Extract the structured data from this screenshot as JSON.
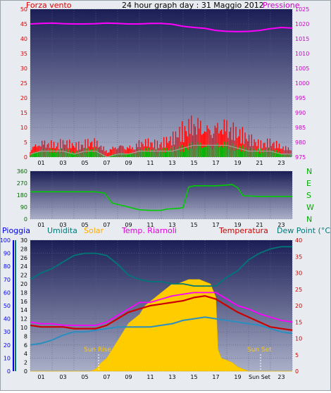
{
  "header": {
    "title": "24 hour graph day : 31 Maggio 2012",
    "left_label": "Forza vento",
    "right_label": "Pressione"
  },
  "time_ticks": [
    "01",
    "03",
    "05",
    "07",
    "09",
    "11",
    "13",
    "15",
    "17",
    "19",
    "21",
    "23"
  ],
  "bottom_time_ticks": [
    "01",
    "03",
    "05",
    "07",
    "09",
    "11",
    "13",
    "15",
    "17",
    "19",
    "Sun Set",
    "23"
  ],
  "colors": {
    "wind": "#ff0000",
    "gust": "#00aa00",
    "gust_light": "#aaaaaa",
    "pressure": "#ff00ff",
    "direction": "#00cc00",
    "rain": "#0000ff",
    "humidity": "#007777",
    "solar": "#ffcc00",
    "temp_riarnoli": "#ff00ff",
    "temperature": "#cc0000",
    "dew_point": "#2a8fc0"
  },
  "chart_data": [
    {
      "type": "line",
      "x_unit": "hour",
      "left_axis": {
        "ticks": [
          0,
          5,
          10,
          15,
          20,
          25,
          30,
          35,
          40,
          45,
          50
        ],
        "range": [
          0,
          50
        ]
      },
      "right_axis": {
        "ticks": [
          975,
          980,
          985,
          990,
          995,
          1000,
          1005,
          1010,
          1015,
          1020,
          1025
        ],
        "range": [
          975,
          1025
        ]
      },
      "series": [
        {
          "name": "Forza vento",
          "axis": "left",
          "x": [
            0,
            1,
            2,
            3,
            4,
            5,
            6,
            7,
            8,
            9,
            10,
            11,
            12,
            13,
            14,
            15,
            16,
            17,
            18,
            19,
            20,
            21,
            22,
            23,
            24
          ],
          "values": [
            3,
            4,
            4,
            4,
            3,
            4,
            4,
            2,
            3,
            3,
            4,
            4,
            4,
            5,
            9,
            11,
            10,
            10,
            10,
            8,
            5,
            4,
            4,
            3,
            3
          ]
        },
        {
          "name": "",
          "axis": "left",
          "x": [
            0,
            1,
            2,
            3,
            4,
            5,
            6,
            7,
            8,
            9,
            10,
            11,
            12,
            13,
            14,
            15,
            16,
            17,
            18,
            19,
            20,
            21,
            22,
            23,
            24
          ],
          "values": [
            1,
            2,
            2,
            2,
            1,
            2,
            2,
            0,
            1,
            1,
            2,
            2,
            2,
            2,
            3,
            4,
            4,
            4,
            4,
            3,
            2,
            2,
            2,
            1,
            1
          ]
        },
        {
          "name": "Pressione",
          "axis": "right",
          "x": [
            0,
            1,
            2,
            3,
            4,
            5,
            6,
            7,
            8,
            9,
            10,
            11,
            12,
            13,
            14,
            15,
            16,
            17,
            18,
            19,
            20,
            21,
            22,
            23,
            24
          ],
          "values": [
            1020.0,
            1020.2,
            1020.3,
            1020.1,
            1020.0,
            1020.0,
            1020.1,
            1020.3,
            1020.2,
            1020.0,
            1020.0,
            1020.2,
            1020.2,
            1019.9,
            1019.2,
            1018.8,
            1018.5,
            1017.8,
            1017.5,
            1017.4,
            1017.5,
            1017.8,
            1018.4,
            1018.8,
            1018.6
          ]
        }
      ]
    },
    {
      "type": "line",
      "x_unit": "hour",
      "y_axis": {
        "ticks": [
          0,
          90,
          180,
          270,
          360
        ],
        "range": [
          0,
          360
        ]
      },
      "direction_labels": [
        "N",
        "W",
        "S",
        "E",
        "N"
      ],
      "series": [
        {
          "name": "",
          "x": [
            0,
            2,
            4,
            6,
            6.8,
            7.5,
            8.5,
            10,
            11,
            12,
            12.5,
            13.5,
            14,
            14.5,
            15,
            16,
            17,
            18,
            18.5,
            19,
            19.5,
            21,
            22,
            23,
            24
          ],
          "values": [
            205,
            205,
            205,
            205,
            195,
            120,
            100,
            70,
            65,
            65,
            75,
            80,
            85,
            240,
            250,
            250,
            250,
            255,
            260,
            235,
            175,
            170,
            170,
            170,
            170
          ]
        }
      ]
    },
    {
      "type": "line",
      "x_unit": "hour",
      "axes": {
        "rain": {
          "ticks": [
            0,
            10,
            20,
            30,
            40,
            50,
            60,
            70,
            80,
            90,
            100
          ],
          "range": [
            0,
            100
          ]
        },
        "humidity": {
          "ticks": [
            0,
            2,
            4,
            6,
            8,
            10,
            12,
            14,
            16,
            18,
            20,
            22,
            24,
            26,
            28,
            30
          ],
          "range": [
            0,
            30
          ]
        },
        "temperature": {
          "ticks": [
            0,
            5,
            10,
            15,
            20,
            25,
            30,
            35,
            40
          ],
          "range": [
            0,
            40
          ]
        }
      },
      "legend": [
        "Pioggia",
        "Umidita",
        "Solar",
        "Temp. Riarnoli",
        "Temperatura",
        "Dew Point (°C)"
      ],
      "annotations": [
        "Sun Rise",
        "Sun Set"
      ],
      "series": [
        {
          "name": "Umidita",
          "axis": "humidity",
          "x": [
            0,
            1,
            2,
            3,
            4,
            5,
            6,
            7,
            8,
            9,
            10,
            11,
            12,
            13,
            14,
            15,
            16,
            17,
            18,
            19,
            20,
            21,
            22,
            23,
            24
          ],
          "values": [
            21,
            22.5,
            23.5,
            25,
            26.5,
            27,
            27,
            26.5,
            24.5,
            22,
            21,
            20.5,
            20.5,
            20,
            20,
            19.5,
            19.5,
            19.5,
            21.5,
            23,
            25.5,
            27,
            28,
            28.5,
            28.5
          ]
        },
        {
          "name": "Temp. Riarnoli",
          "axis": "temperature",
          "x": [
            0,
            1,
            2,
            3,
            4,
            5,
            6,
            7,
            8,
            9,
            10,
            11,
            12,
            13,
            14,
            15,
            16,
            17,
            18,
            19,
            20,
            21,
            22,
            23,
            24
          ],
          "values": [
            15,
            14.5,
            14.5,
            14,
            14,
            14,
            14,
            15,
            17,
            19,
            21,
            21,
            22,
            23,
            23.5,
            24,
            24,
            24,
            22,
            20,
            19,
            17.5,
            16.5,
            15.5,
            15
          ]
        },
        {
          "name": "Temperatura",
          "axis": "temperature",
          "x": [
            0,
            1,
            2,
            3,
            4,
            5,
            6,
            7,
            8,
            9,
            10,
            11,
            12,
            13,
            14,
            15,
            16,
            17,
            18,
            19,
            20,
            21,
            22,
            23,
            24
          ],
          "values": [
            14,
            13.5,
            13.5,
            13.5,
            13,
            13,
            13,
            14,
            16,
            18,
            19,
            20,
            20.5,
            21,
            21.5,
            22.5,
            23,
            22,
            20,
            18,
            16.5,
            15,
            13.5,
            13,
            12.5
          ]
        },
        {
          "name": "Dew Point (°C)",
          "axis": "temperature",
          "x": [
            0,
            1,
            2,
            3,
            4,
            5,
            6,
            7,
            8,
            9,
            10,
            11,
            12,
            13,
            14,
            15,
            16,
            17,
            18,
            19,
            20,
            21,
            22,
            23,
            24
          ],
          "values": [
            8,
            8.5,
            9.5,
            11,
            12,
            12,
            12.5,
            13,
            13.5,
            13.5,
            13.5,
            13.5,
            14,
            14.5,
            15.5,
            16,
            16.5,
            16,
            15.5,
            15,
            14.5,
            14,
            13,
            12,
            11.5
          ]
        },
        {
          "name": "Solar",
          "axis": "humidity",
          "x": [
            0,
            5.5,
            6,
            6.5,
            7,
            7.5,
            8,
            8.5,
            9,
            9.5,
            10,
            10.5,
            11,
            11.5,
            12,
            12.5,
            13,
            13.5,
            14,
            14.5,
            15,
            15.5,
            16,
            16.5,
            17,
            17.2,
            17.5,
            18,
            18.5,
            19,
            19.5,
            20,
            24
          ],
          "values": [
            0,
            0,
            0.5,
            2,
            3,
            5,
            7,
            9,
            11,
            12,
            13,
            15,
            16,
            17,
            18,
            19,
            20,
            20,
            20.5,
            21,
            21,
            21,
            20.5,
            20,
            17,
            5,
            3,
            2.5,
            2,
            1,
            0.5,
            0,
            0
          ]
        }
      ]
    }
  ]
}
